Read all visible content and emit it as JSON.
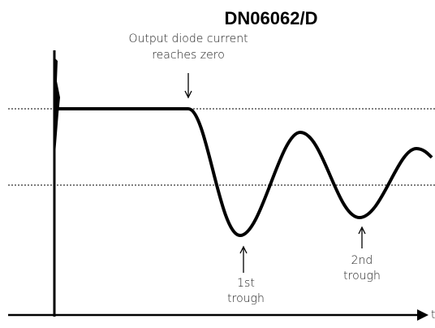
{
  "header": {
    "title": "DN06062/D"
  },
  "annotations": [
    {
      "lines": [
        "Output diode current",
        "reaches zero"
      ]
    },
    {
      "lines": [
        "1st",
        "trough"
      ]
    },
    {
      "lines": [
        "2nd",
        "trough"
      ]
    }
  ],
  "axis": {
    "x_label": "t"
  }
}
